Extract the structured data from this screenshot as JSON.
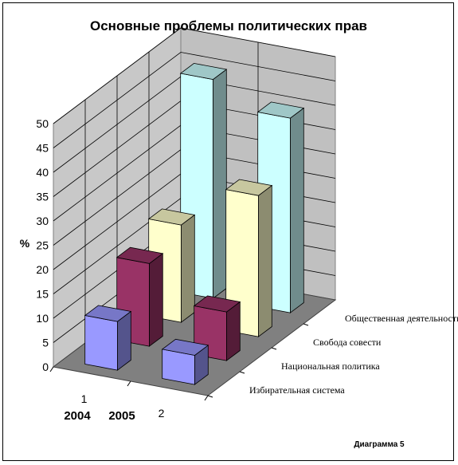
{
  "chart_data": {
    "type": "bar3d",
    "title": "Основные проблемы политических прав",
    "ylabel": "%",
    "ylim": [
      0,
      50
    ],
    "yticks": [
      "0",
      "5",
      "10",
      "15",
      "20",
      "25",
      "30",
      "35",
      "40",
      "45",
      "50"
    ],
    "x_ticks": [
      "1",
      "2"
    ],
    "year_labels": [
      "2004",
      "2005"
    ],
    "categories": [
      "Избирательная система",
      "Национальная политика",
      "Свобода совести",
      "Общественная деятельность"
    ],
    "series": [
      {
        "x": "1",
        "values": [
          10,
          17,
          20,
          45
        ],
        "colors": [
          "#9999FF",
          "#993366",
          "#FFFFCC",
          "#CCFFFF"
        ]
      },
      {
        "x": "2",
        "values": [
          6,
          10,
          29,
          40
        ],
        "colors": [
          "#9999FF",
          "#993366",
          "#FFFFCC",
          "#CCFFFF"
        ]
      }
    ],
    "caption": "Диаграмма 5",
    "grid": true
  }
}
